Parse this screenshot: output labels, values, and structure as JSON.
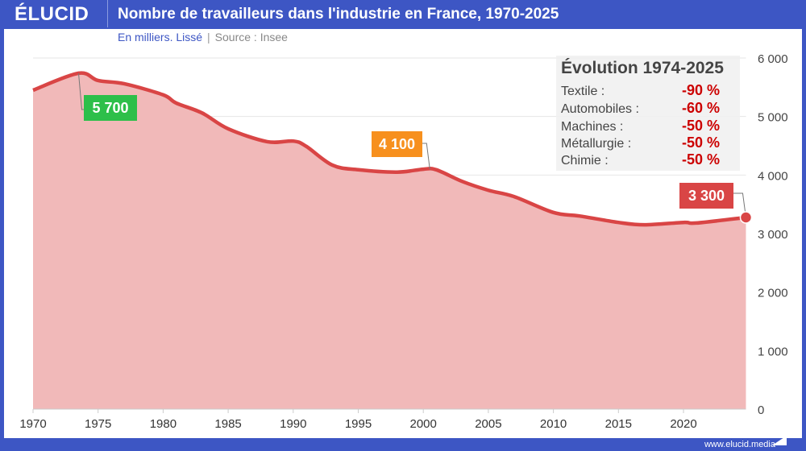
{
  "brand": "ÉLUCID",
  "title": "Nombre de travailleurs dans l'industrie en France, 1970-2025",
  "subtitle": {
    "unit": "En milliers. Lissé",
    "separator": "|",
    "source": "Source : Insee"
  },
  "footer": "www.elucid.media",
  "colors": {
    "frame": "#3d56c4",
    "line": "#d94545",
    "area": "#f1b9b9",
    "green": "#2dbf4a",
    "orange": "#f7901e",
    "red": "#d94545",
    "negative": "#cc0000"
  },
  "legend": {
    "title": "Évolution 1974-2025",
    "items": [
      {
        "label": "Textile :",
        "value": "-90 %"
      },
      {
        "label": "Automobiles :",
        "value": "-60 %"
      },
      {
        "label": "Machines :",
        "value": "-50 %"
      },
      {
        "label": "Métallurgie :",
        "value": "-50 %"
      },
      {
        "label": "Chimie :",
        "value": "-50 %"
      }
    ]
  },
  "chart_data": {
    "type": "area",
    "title": "Nombre de travailleurs dans l'industrie en France, 1970-2025",
    "ylabel": "En milliers",
    "xlim": [
      1970,
      2024.8
    ],
    "ylim": [
      0,
      6000
    ],
    "x_ticks": [
      "1970",
      "1975",
      "1980",
      "1985",
      "1990",
      "1995",
      "2000",
      "2005",
      "2010",
      "2015",
      "2020"
    ],
    "y_ticks": [
      "0",
      "1 000",
      "2 000",
      "3 000",
      "4 000",
      "5 000",
      "6 000"
    ],
    "y_axis_position": "right",
    "grid": true,
    "x": [
      1970,
      1973.5,
      1975,
      1977,
      1980,
      1981,
      1983,
      1985,
      1988,
      1990,
      1991,
      1993,
      1995,
      1998,
      2000,
      2001,
      2003,
      2005,
      2007,
      2010,
      2012,
      2015,
      2017,
      2020,
      2021,
      2024.8
    ],
    "values": [
      5450,
      5740,
      5615,
      5560,
      5370,
      5230,
      5060,
      4790,
      4570,
      4580,
      4490,
      4170,
      4090,
      4050,
      4100,
      4090,
      3890,
      3740,
      3630,
      3360,
      3300,
      3190,
      3150,
      3190,
      3180,
      3275
    ],
    "annotations": [
      {
        "x": 1973.5,
        "y": 5740,
        "text": "5 700",
        "color": "green"
      },
      {
        "x": 2000.5,
        "y": 4100,
        "text": "4 100",
        "color": "orange"
      },
      {
        "x": 2024.8,
        "y": 3275,
        "text": "3 300",
        "color": "red"
      }
    ]
  }
}
